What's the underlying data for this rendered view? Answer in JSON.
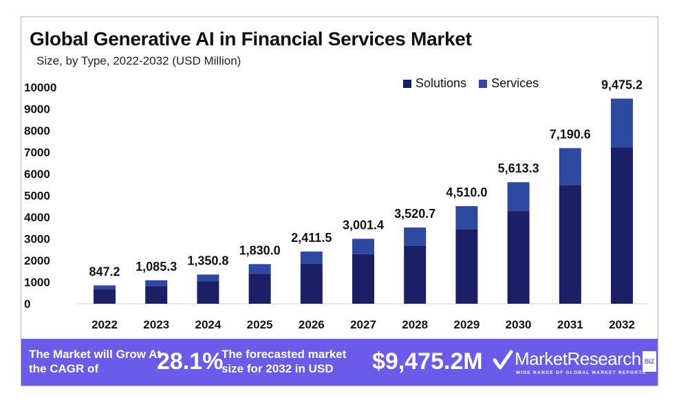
{
  "chart_data": {
    "type": "bar",
    "stacked": true,
    "title": "Global Generative AI in Financial Services Market",
    "subtitle": "Size, by Type, 2022-2032 (USD Million)",
    "xlabel": "",
    "ylabel": "",
    "ylim": [
      0,
      10000
    ],
    "yticks": [
      0,
      1000,
      2000,
      3000,
      4000,
      5000,
      6000,
      7000,
      8000,
      9000,
      10000
    ],
    "grid": false,
    "legend_position": "top-right",
    "categories": [
      "2022",
      "2023",
      "2024",
      "2025",
      "2026",
      "2027",
      "2028",
      "2029",
      "2030",
      "2031",
      "2032"
    ],
    "series": [
      {
        "name": "Solutions",
        "color": "#1a1f66",
        "values": [
          650,
          820,
          1030,
          1390,
          1840,
          2290,
          2680,
          3430,
          4270,
          5480,
          7220
        ]
      },
      {
        "name": "Services",
        "color": "#2d4aa0",
        "values": [
          197.2,
          265.3,
          320.8,
          440.0,
          571.5,
          711.4,
          840.7,
          1080.0,
          1343.3,
          1710.6,
          2255.2
        ]
      }
    ],
    "totals": [
      847.2,
      1085.3,
      1350.8,
      1830.0,
      2411.5,
      3001.4,
      3520.7,
      4510.0,
      5613.3,
      7190.6,
      9475.2
    ],
    "total_labels": [
      "847.2",
      "1,085.3",
      "1,350.8",
      "1,830.0",
      "2,411.5",
      "3,001.4",
      "3,520.7",
      "4,510.0",
      "5,613.3",
      "7,190.6",
      "9,475.2"
    ]
  },
  "banner": {
    "grow_text": "The Market will Grow At the CAGR of",
    "cagr": "28.1%",
    "forecast_text": "The forecasted market size for 2032 in USD",
    "forecast_value": "$9,475.2M",
    "brand": "MarketResearch",
    "brand_suffix": "BIZ",
    "tagline": "WIDE RANGE OF GLOBAL MARKET REPORTS",
    "color": "#6a5bea"
  }
}
